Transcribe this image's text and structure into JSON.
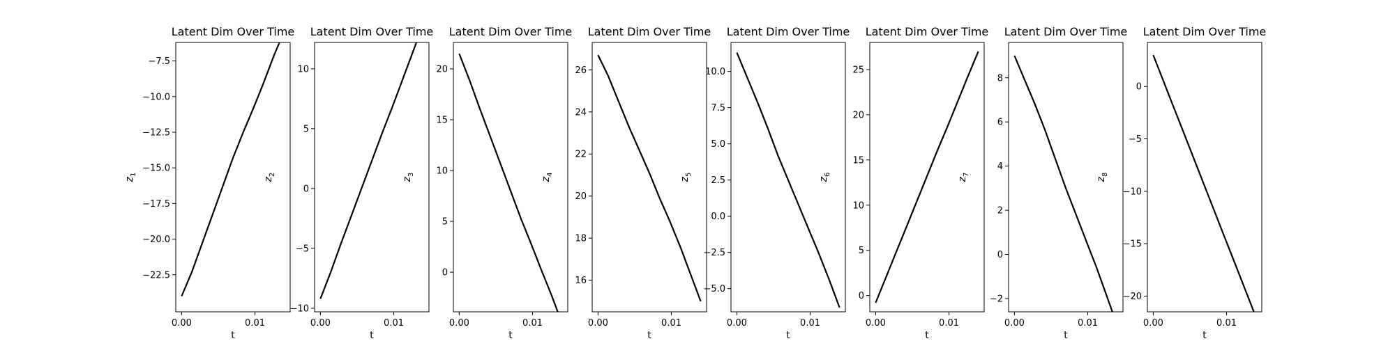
{
  "chart_data": [
    {
      "type": "line",
      "title": "Latent Dim Over Time",
      "xlabel": "t",
      "ylabel": "z",
      "ylabel_sub": "1",
      "xlim": [
        -0.0008,
        0.0148
      ],
      "ylim": [
        -25.1,
        -6.2
      ],
      "xticks": [
        {
          "value": 0.0,
          "label": "0.00"
        },
        {
          "value": 0.01,
          "label": "0.01"
        }
      ],
      "yticks": [
        {
          "value": -22.5,
          "label": "−22.5"
        },
        {
          "value": -20.0,
          "label": "−20.0"
        },
        {
          "value": -17.5,
          "label": "−17.5"
        },
        {
          "value": -15.0,
          "label": "−15.0"
        },
        {
          "value": -12.5,
          "label": "−12.5"
        },
        {
          "value": -10.0,
          "label": "−10.0"
        },
        {
          "value": -7.5,
          "label": "−7.5"
        }
      ],
      "x": [
        0.0,
        0.0014,
        0.0028,
        0.0042,
        0.0056,
        0.007,
        0.0084,
        0.0098,
        0.0112,
        0.0126,
        0.014
      ],
      "y": [
        -24.0,
        -22.3,
        -20.3,
        -18.3,
        -16.3,
        -14.3,
        -12.5,
        -10.8,
        -9.0,
        -7.1,
        -5.4
      ]
    },
    {
      "type": "line",
      "title": "Latent Dim Over Time",
      "xlabel": "t",
      "ylabel": "z",
      "ylabel_sub": "2",
      "xlim": [
        -0.0008,
        0.0148
      ],
      "ylim": [
        -10.3,
        12.2
      ],
      "xticks": [
        {
          "value": 0.0,
          "label": "0.00"
        },
        {
          "value": 0.01,
          "label": "0.01"
        }
      ],
      "yticks": [
        {
          "value": -10,
          "label": "−10"
        },
        {
          "value": -5,
          "label": "−5"
        },
        {
          "value": 0,
          "label": "0"
        },
        {
          "value": 5,
          "label": "5"
        },
        {
          "value": 10,
          "label": "10"
        }
      ],
      "x": [
        0.0,
        0.0014,
        0.0028,
        0.0042,
        0.0056,
        0.007,
        0.0084,
        0.0098,
        0.0112,
        0.0126,
        0.014
      ],
      "y": [
        -9.2,
        -7.0,
        -4.6,
        -2.3,
        0.0,
        2.3,
        4.6,
        6.8,
        9.1,
        11.4,
        13.7
      ]
    },
    {
      "type": "line",
      "title": "Latent Dim Over Time",
      "xlabel": "t",
      "ylabel": "z",
      "ylabel_sub": "3",
      "xlim": [
        -0.0008,
        0.0148
      ],
      "ylim": [
        -3.9,
        22.6
      ],
      "xticks": [
        {
          "value": 0.0,
          "label": "0.00"
        },
        {
          "value": 0.01,
          "label": "0.01"
        }
      ],
      "yticks": [
        {
          "value": 0,
          "label": "0"
        },
        {
          "value": 5,
          "label": "5"
        },
        {
          "value": 10,
          "label": "10"
        },
        {
          "value": 15,
          "label": "15"
        },
        {
          "value": 20,
          "label": "20"
        }
      ],
      "x": [
        0.0,
        0.0014,
        0.0028,
        0.0042,
        0.0056,
        0.007,
        0.0084,
        0.0098,
        0.0112,
        0.0126,
        0.014
      ],
      "y": [
        21.5,
        18.9,
        16.1,
        13.4,
        10.7,
        8.0,
        5.3,
        2.8,
        0.2,
        -2.3,
        -5.0
      ]
    },
    {
      "type": "line",
      "title": "Latent Dim Over Time",
      "xlabel": "t",
      "ylabel": "z",
      "ylabel_sub": "4",
      "xlim": [
        -0.0008,
        0.0148
      ],
      "ylim": [
        14.5,
        27.3
      ],
      "xticks": [
        {
          "value": 0.0,
          "label": "0.00"
        },
        {
          "value": 0.01,
          "label": "0.01"
        }
      ],
      "yticks": [
        {
          "value": 16,
          "label": "16"
        },
        {
          "value": 18,
          "label": "18"
        },
        {
          "value": 20,
          "label": "20"
        },
        {
          "value": 22,
          "label": "22"
        },
        {
          "value": 24,
          "label": "24"
        },
        {
          "value": 26,
          "label": "26"
        }
      ],
      "x": [
        0.0,
        0.0014,
        0.0028,
        0.0042,
        0.0056,
        0.007,
        0.0084,
        0.0098,
        0.0112,
        0.0126,
        0.014
      ],
      "y": [
        26.7,
        25.7,
        24.5,
        23.3,
        22.2,
        21.1,
        19.9,
        18.8,
        17.6,
        16.3,
        15.0
      ]
    },
    {
      "type": "line",
      "title": "Latent Dim Over Time",
      "xlabel": "t",
      "ylabel": "z",
      "ylabel_sub": "5",
      "xlim": [
        -0.0008,
        0.0148
      ],
      "ylim": [
        -6.6,
        12.0
      ],
      "xticks": [
        {
          "value": 0.0,
          "label": "0.00"
        },
        {
          "value": 0.01,
          "label": "0.01"
        }
      ],
      "yticks": [
        {
          "value": -5.0,
          "label": "−5.0"
        },
        {
          "value": -2.5,
          "label": "−2.5"
        },
        {
          "value": 0.0,
          "label": "0.0"
        },
        {
          "value": 2.5,
          "label": "2.5"
        },
        {
          "value": 5.0,
          "label": "5.0"
        },
        {
          "value": 7.5,
          "label": "7.5"
        },
        {
          "value": 10.0,
          "label": "10.0"
        }
      ],
      "x": [
        0.0,
        0.0014,
        0.0028,
        0.0042,
        0.0056,
        0.007,
        0.0084,
        0.0098,
        0.0112,
        0.0126,
        0.014
      ],
      "y": [
        11.3,
        9.6,
        7.9,
        6.1,
        4.2,
        2.5,
        0.8,
        -0.9,
        -2.6,
        -4.4,
        -6.3
      ]
    },
    {
      "type": "line",
      "title": "Latent Dim Over Time",
      "xlabel": "t",
      "ylabel": "z",
      "ylabel_sub": "6",
      "xlim": [
        -0.0008,
        0.0148
      ],
      "ylim": [
        -1.8,
        28.0
      ],
      "xticks": [
        {
          "value": 0.0,
          "label": "0.00"
        },
        {
          "value": 0.01,
          "label": "0.01"
        }
      ],
      "yticks": [
        {
          "value": 0,
          "label": "0"
        },
        {
          "value": 5,
          "label": "5"
        },
        {
          "value": 10,
          "label": "10"
        },
        {
          "value": 15,
          "label": "15"
        },
        {
          "value": 20,
          "label": "20"
        },
        {
          "value": 25,
          "label": "25"
        }
      ],
      "x": [
        0.0,
        0.0014,
        0.0028,
        0.0042,
        0.0056,
        0.007,
        0.0084,
        0.0098,
        0.0112,
        0.0126,
        0.014
      ],
      "y": [
        -0.8,
        2.0,
        4.8,
        7.6,
        10.4,
        13.2,
        16.0,
        18.7,
        21.5,
        24.3,
        27.0
      ]
    },
    {
      "type": "line",
      "title": "Latent Dim Over Time",
      "xlabel": "t",
      "ylabel": "z",
      "ylabel_sub": "7",
      "xlim": [
        -0.0008,
        0.0148
      ],
      "ylim": [
        -2.6,
        9.6
      ],
      "xticks": [
        {
          "value": 0.0,
          "label": "0.00"
        },
        {
          "value": 0.01,
          "label": "0.01"
        }
      ],
      "yticks": [
        {
          "value": -2,
          "label": "−2"
        },
        {
          "value": 0,
          "label": "0"
        },
        {
          "value": 2,
          "label": "2"
        },
        {
          "value": 4,
          "label": "4"
        },
        {
          "value": 6,
          "label": "6"
        },
        {
          "value": 8,
          "label": "8"
        }
      ],
      "x": [
        0.0,
        0.0014,
        0.0028,
        0.0042,
        0.0056,
        0.007,
        0.0084,
        0.0098,
        0.0112,
        0.0126,
        0.014
      ],
      "y": [
        9.0,
        7.9,
        6.8,
        5.6,
        4.3,
        3.0,
        1.8,
        0.6,
        -0.6,
        -1.9,
        -3.2
      ]
    },
    {
      "type": "line",
      "title": "Latent Dim Over Time",
      "xlabel": "t",
      "ylabel": "z",
      "ylabel_sub": "8",
      "xlim": [
        -0.0008,
        0.0148
      ],
      "ylim": [
        -21.5,
        4.2
      ],
      "xticks": [
        {
          "value": 0.0,
          "label": "0.00"
        },
        {
          "value": 0.01,
          "label": "0.01"
        }
      ],
      "yticks": [
        {
          "value": -20,
          "label": "−20"
        },
        {
          "value": -15,
          "label": "−15"
        },
        {
          "value": -10,
          "label": "−10"
        },
        {
          "value": -5,
          "label": "−5"
        },
        {
          "value": 0,
          "label": "0"
        }
      ],
      "x": [
        0.0,
        0.0014,
        0.0028,
        0.0042,
        0.0056,
        0.007,
        0.0084,
        0.0098,
        0.0112,
        0.0126,
        0.014
      ],
      "y": [
        3.0,
        0.5,
        -2.0,
        -4.5,
        -7.0,
        -9.5,
        -12.0,
        -14.5,
        -17.0,
        -19.5,
        -22.0
      ]
    }
  ]
}
